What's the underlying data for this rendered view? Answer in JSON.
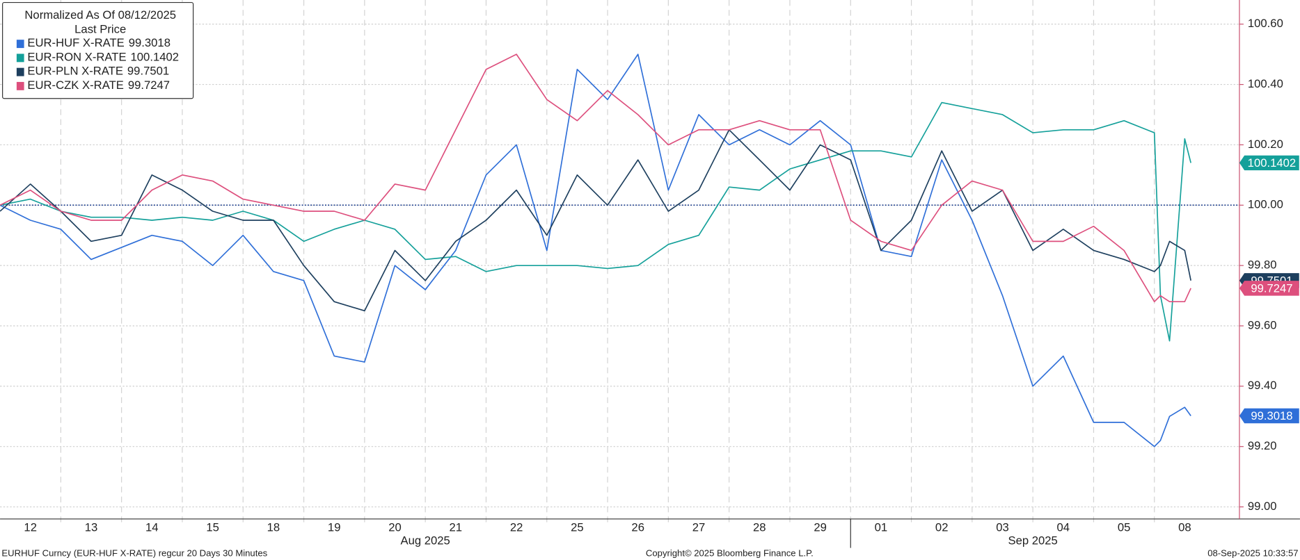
{
  "chart_data": {
    "type": "line",
    "legend_title": "Normalized As Of 08/12/2025",
    "legend_subtitle": "Last Price",
    "x": [
      0,
      0.5,
      1,
      1.5,
      2,
      2.5,
      3,
      3.5,
      4,
      4.5,
      5,
      5.5,
      6,
      6.5,
      7,
      7.5,
      8,
      8.5,
      9,
      9.5,
      10,
      10.5,
      11,
      11.5,
      12,
      12.5,
      13,
      13.5,
      14,
      14.5,
      15,
      15.5,
      16,
      16.5,
      17,
      17.5,
      18,
      18.5,
      19,
      19.1,
      19.25,
      19.5,
      19.6
    ],
    "series": [
      {
        "name": "EUR-HUF X-RATE",
        "color": "#2f6fd8",
        "values": [
          100.0,
          99.95,
          99.92,
          99.82,
          99.86,
          99.9,
          99.88,
          99.8,
          99.9,
          99.78,
          99.75,
          99.5,
          99.48,
          99.8,
          99.72,
          99.85,
          100.1,
          100.2,
          99.85,
          100.45,
          100.35,
          100.5,
          100.05,
          100.3,
          100.2,
          100.25,
          100.2,
          100.28,
          100.2,
          99.85,
          99.83,
          100.15,
          99.95,
          99.7,
          99.4,
          99.5,
          99.28,
          99.28,
          99.2,
          99.22,
          99.3,
          99.33,
          99.3018
        ]
      },
      {
        "name": "EUR-RON X-RATE",
        "color": "#14a09a",
        "values": [
          100.0,
          100.02,
          99.98,
          99.96,
          99.96,
          99.95,
          99.96,
          99.95,
          99.98,
          99.95,
          99.88,
          99.92,
          99.95,
          99.92,
          99.82,
          99.83,
          99.78,
          99.8,
          99.8,
          99.8,
          99.79,
          99.8,
          99.87,
          99.9,
          100.06,
          100.05,
          100.12,
          100.15,
          100.18,
          100.18,
          100.16,
          100.34,
          100.32,
          100.3,
          100.24,
          100.25,
          100.25,
          100.28,
          100.24,
          99.7,
          99.55,
          100.22,
          100.1402
        ]
      },
      {
        "name": "EUR-PLN X-RATE",
        "color": "#1d3f5e",
        "values": [
          99.98,
          100.07,
          99.98,
          99.88,
          99.9,
          100.1,
          100.05,
          99.98,
          99.95,
          99.95,
          99.8,
          99.68,
          99.65,
          99.85,
          99.75,
          99.88,
          99.95,
          100.05,
          99.9,
          100.1,
          100.0,
          100.15,
          99.98,
          100.05,
          100.25,
          100.15,
          100.05,
          100.2,
          100.15,
          99.85,
          99.95,
          100.18,
          99.98,
          100.05,
          99.85,
          99.92,
          99.85,
          99.82,
          99.78,
          99.8,
          99.88,
          99.85,
          99.7501
        ]
      },
      {
        "name": "EUR-CZK X-RATE",
        "color": "#dd4f7d",
        "values": [
          100.0,
          100.05,
          99.98,
          99.95,
          99.95,
          100.05,
          100.1,
          100.08,
          100.02,
          100.0,
          99.98,
          99.98,
          99.95,
          100.07,
          100.05,
          100.25,
          100.45,
          100.5,
          100.35,
          100.28,
          100.38,
          100.3,
          100.2,
          100.25,
          100.25,
          100.28,
          100.25,
          100.25,
          99.95,
          99.88,
          99.85,
          100.0,
          100.08,
          100.05,
          99.88,
          99.88,
          99.93,
          99.85,
          99.68,
          99.7,
          99.68,
          99.68,
          99.7247
        ]
      }
    ],
    "xlim": [
      0,
      20.4
    ],
    "xticks": [
      {
        "value": 0.5,
        "label": "12"
      },
      {
        "value": 1.5,
        "label": "13"
      },
      {
        "value": 2.5,
        "label": "14"
      },
      {
        "value": 3.5,
        "label": "15"
      },
      {
        "value": 4.5,
        "label": "18"
      },
      {
        "value": 5.5,
        "label": "19"
      },
      {
        "value": 6.5,
        "label": "20"
      },
      {
        "value": 7.5,
        "label": "21"
      },
      {
        "value": 8.5,
        "label": "22"
      },
      {
        "value": 9.5,
        "label": "25"
      },
      {
        "value": 10.5,
        "label": "26"
      },
      {
        "value": 11.5,
        "label": "27"
      },
      {
        "value": 12.5,
        "label": "28"
      },
      {
        "value": 13.5,
        "label": "29"
      },
      {
        "value": 14.5,
        "label": "01"
      },
      {
        "value": 15.5,
        "label": "02"
      },
      {
        "value": 16.5,
        "label": "03"
      },
      {
        "value": 17.5,
        "label": "04"
      },
      {
        "value": 18.5,
        "label": "05"
      },
      {
        "value": 19.5,
        "label": "08"
      }
    ],
    "xgroups": [
      {
        "label": "Aug 2025",
        "start": 0,
        "end": 14
      },
      {
        "label": "Sep 2025",
        "start": 14,
        "end": 20
      }
    ],
    "ylim": [
      98.96,
      100.68
    ],
    "yticks": [
      {
        "value": 99,
        "label": "99.00"
      },
      {
        "value": 99.2,
        "label": "99.20"
      },
      {
        "value": 99.4,
        "label": "99.40"
      },
      {
        "value": 99.6,
        "label": "99.60"
      },
      {
        "value": 99.8,
        "label": "99.80"
      },
      {
        "value": 100,
        "label": "100.00"
      },
      {
        "value": 100.2,
        "label": "100.20"
      },
      {
        "value": 100.4,
        "label": "100.40"
      },
      {
        "value": 100.6,
        "label": "100.60"
      }
    ],
    "reference_value": 100,
    "grid": true,
    "legend": "top-left",
    "footer_left": "EURHUF Curncy (EUR-HUF X-RATE) regcur 20 Days 30 Minutes",
    "footer_center": "Copyright© 2025 Bloomberg Finance L.P.",
    "footer_right": "08-Sep-2025 10:33:57"
  }
}
